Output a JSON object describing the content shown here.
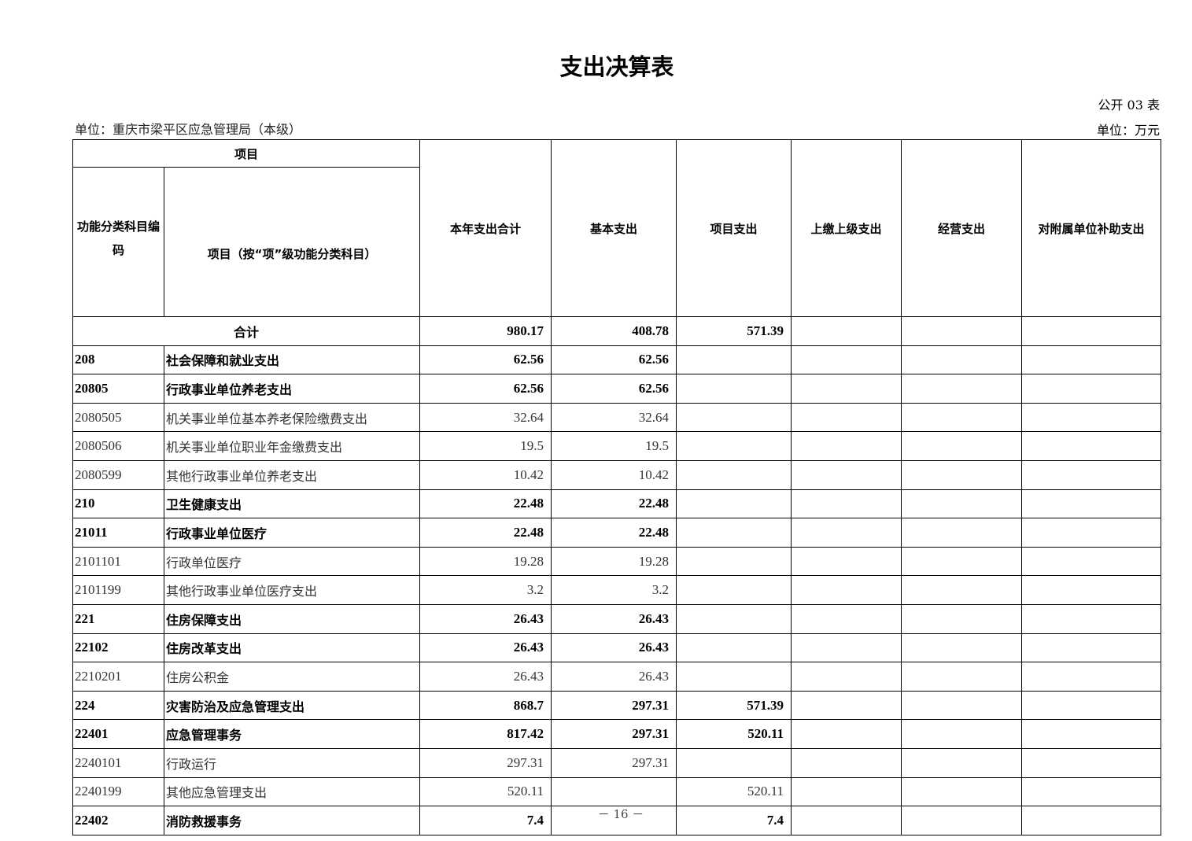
{
  "title": "支出决算表",
  "table_no": "公开 03 表",
  "unit_org": "单位：重庆市梁平区应急管理局（本级）",
  "unit_money": "单位：万元",
  "headers": {
    "project": "项目",
    "code": "功能分类科目编码",
    "name": "项目（按“项”级功能分类科目）",
    "total": "本年支出合计",
    "basic": "基本支出",
    "project_exp": "项目支出",
    "upper": "上缴上级支出",
    "business": "经营支出",
    "subsidy": "对附属单位补助支出"
  },
  "total_row": {
    "label": "合计",
    "total": "980.17",
    "basic": "408.78",
    "project": "571.39",
    "upper": "",
    "business": "",
    "subsidy": ""
  },
  "rows": [
    {
      "code": "208",
      "name": "社会保障和就业支出",
      "total": "62.56",
      "basic": "62.56",
      "project": "",
      "bold": true
    },
    {
      "code": "20805",
      "name": "行政事业单位养老支出",
      "total": "62.56",
      "basic": "62.56",
      "project": "",
      "bold": true
    },
    {
      "code": "2080505",
      "name": "机关事业单位基本养老保险缴费支出",
      "total": "32.64",
      "basic": "32.64",
      "project": "",
      "bold": false
    },
    {
      "code": "2080506",
      "name": "机关事业单位职业年金缴费支出",
      "total": "19.5",
      "basic": "19.5",
      "project": "",
      "bold": false
    },
    {
      "code": "2080599",
      "name": "其他行政事业单位养老支出",
      "total": "10.42",
      "basic": "10.42",
      "project": "",
      "bold": false
    },
    {
      "code": "210",
      "name": "卫生健康支出",
      "total": "22.48",
      "basic": "22.48",
      "project": "",
      "bold": true
    },
    {
      "code": "21011",
      "name": "行政事业单位医疗",
      "total": "22.48",
      "basic": "22.48",
      "project": "",
      "bold": true
    },
    {
      "code": "2101101",
      "name": "行政单位医疗",
      "total": "19.28",
      "basic": "19.28",
      "project": "",
      "bold": false
    },
    {
      "code": "2101199",
      "name": "其他行政事业单位医疗支出",
      "total": "3.2",
      "basic": "3.2",
      "project": "",
      "bold": false
    },
    {
      "code": "221",
      "name": "住房保障支出",
      "total": "26.43",
      "basic": "26.43",
      "project": "",
      "bold": true
    },
    {
      "code": "22102",
      "name": "住房改革支出",
      "total": "26.43",
      "basic": "26.43",
      "project": "",
      "bold": true
    },
    {
      "code": "2210201",
      "name": "住房公积金",
      "total": "26.43",
      "basic": "26.43",
      "project": "",
      "bold": false
    },
    {
      "code": "224",
      "name": "灾害防治及应急管理支出",
      "total": "868.7",
      "basic": "297.31",
      "project": "571.39",
      "bold": true
    },
    {
      "code": "22401",
      "name": "应急管理事务",
      "total": "817.42",
      "basic": "297.31",
      "project": "520.11",
      "bold": true
    },
    {
      "code": "2240101",
      "name": "行政运行",
      "total": "297.31",
      "basic": "297.31",
      "project": "",
      "bold": false
    },
    {
      "code": "2240199",
      "name": "其他应急管理支出",
      "total": "520.11",
      "basic": "",
      "project": "520.11",
      "bold": false
    },
    {
      "code": "22402",
      "name": "消防救援事务",
      "total": "7.4",
      "basic": "",
      "project": "7.4",
      "bold": true
    }
  ],
  "page_number": "－ 16 －"
}
